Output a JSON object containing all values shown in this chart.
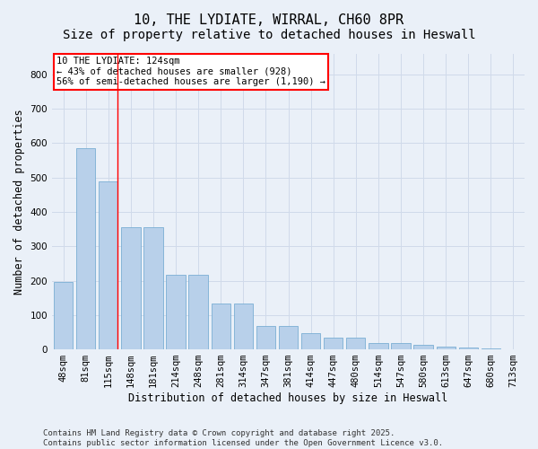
{
  "title_line1": "10, THE LYDIATE, WIRRAL, CH60 8PR",
  "title_line2": "Size of property relative to detached houses in Heswall",
  "xlabel": "Distribution of detached houses by size in Heswall",
  "ylabel": "Number of detached properties",
  "categories": [
    "48sqm",
    "81sqm",
    "115sqm",
    "148sqm",
    "181sqm",
    "214sqm",
    "248sqm",
    "281sqm",
    "314sqm",
    "347sqm",
    "381sqm",
    "414sqm",
    "447sqm",
    "480sqm",
    "514sqm",
    "547sqm",
    "580sqm",
    "613sqm",
    "647sqm",
    "680sqm",
    "713sqm"
  ],
  "values": [
    195,
    585,
    490,
    355,
    355,
    218,
    218,
    133,
    133,
    68,
    68,
    48,
    35,
    35,
    18,
    18,
    12,
    7,
    5,
    2,
    1
  ],
  "bar_color": "#b8d0ea",
  "bar_edgecolor": "#7aaed4",
  "grid_color": "#d0daea",
  "bg_color": "#eaf0f8",
  "annotation_text": "10 THE LYDIATE: 124sqm\n← 43% of detached houses are smaller (928)\n56% of semi-detached houses are larger (1,190) →",
  "annotation_box_color": "white",
  "annotation_box_edgecolor": "red",
  "vline_x": 2.4,
  "vline_color": "red",
  "ylim": [
    0,
    860
  ],
  "yticks": [
    0,
    100,
    200,
    300,
    400,
    500,
    600,
    700,
    800
  ],
  "footer_text": "Contains HM Land Registry data © Crown copyright and database right 2025.\nContains public sector information licensed under the Open Government Licence v3.0.",
  "title_fontsize": 11,
  "subtitle_fontsize": 10,
  "axis_label_fontsize": 8.5,
  "tick_fontsize": 7.5,
  "annotation_fontsize": 7.5,
  "footer_fontsize": 6.5
}
